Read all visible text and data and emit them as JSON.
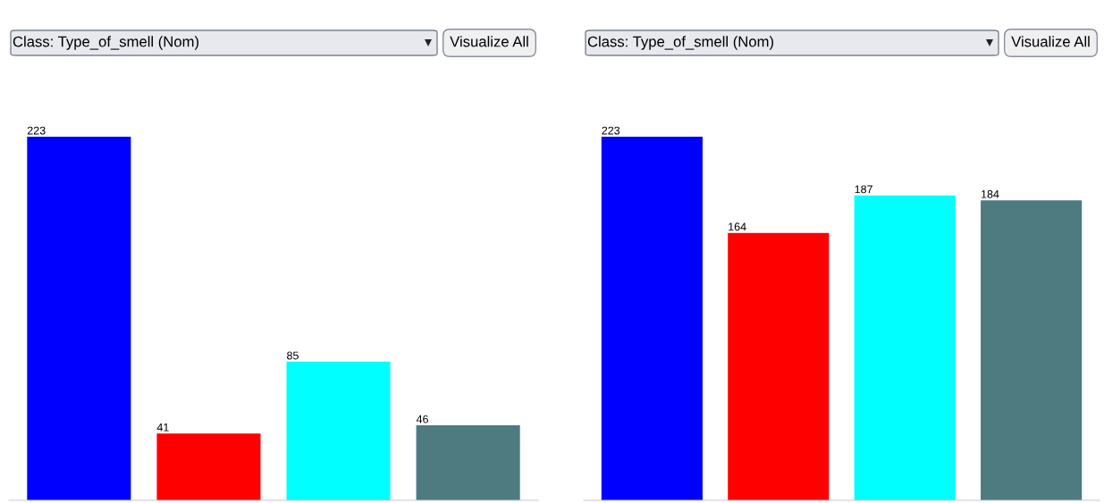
{
  "chart_data": [
    {
      "type": "bar",
      "title": "Class: Type_of_smell (Nom)",
      "annotations": [
        "Visualize All"
      ],
      "categories": [
        null,
        null,
        null,
        null
      ],
      "values": [
        223,
        41,
        85,
        46
      ],
      "colors": [
        "#0000ff",
        "#ff0000",
        "#00ffff",
        "#4d7b80"
      ],
      "data_labels": true
    },
    {
      "type": "bar",
      "title": "Class: Type_of_smell (Nom)",
      "annotations": [
        "Visualize All"
      ],
      "categories": [
        null,
        null,
        null,
        null
      ],
      "values": [
        223,
        164,
        187,
        184
      ],
      "colors": [
        "#0000ff",
        "#ff0000",
        "#00ffff",
        "#4d7b80"
      ],
      "data_labels": true
    }
  ]
}
